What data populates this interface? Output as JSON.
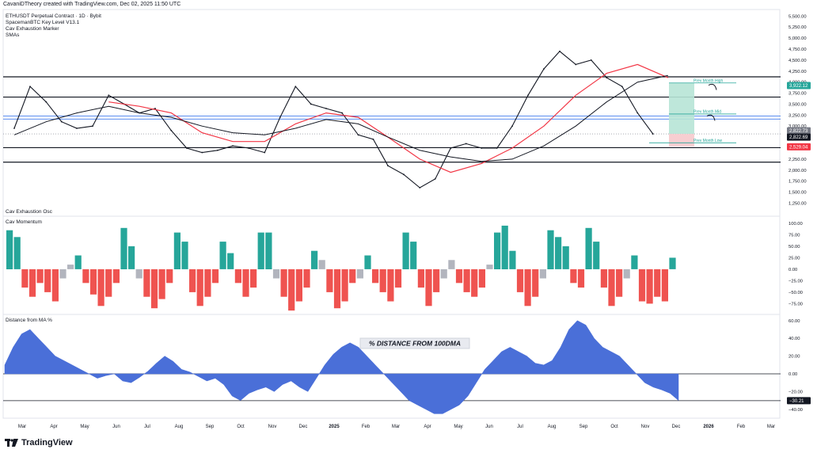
{
  "header": {
    "attribution": "CavaniDTheory created with TradingView.com, Dec 02, 2025 11:50 UTC",
    "symbol": "ETHUSDT Perpetual Contract · 1D · Bybit",
    "indicator1": "SpacemanBTC Key Level V13.1",
    "indicator2": "Cav Exhaustion Marker",
    "indicator3": "SMAs"
  },
  "panes": {
    "osc_title": "Cav Exhaustion Osc",
    "momentum_title": "Cav Momentum",
    "distance_title": "Distance from MA %",
    "distance_annotation": "% DISTANCE FROM  100DMA"
  },
  "footer": {
    "logo_text": "TradingView"
  },
  "colors": {
    "candle": "#131722",
    "sma_fast": "#f23645",
    "sma_slow": "#131722",
    "level": "#131722",
    "blue_level": "#5b8def",
    "osc_pos": "#26a69a",
    "osc_neg": "#ef5350",
    "osc_neutral": "#b2b5be",
    "distance_fill": "#4a6fd8",
    "pos_box": "#b7e4d6",
    "neg_box": "#f6c9cc"
  },
  "chart_data": [
    {
      "type": "line",
      "title": "ETHUSDT Perpetual Contract · 1D · Bybit",
      "x_ticks": [
        "Mar",
        "Apr",
        "May",
        "Jun",
        "Jul",
        "Aug",
        "Sep",
        "Oct",
        "Nov",
        "Dec",
        "2025",
        "Feb",
        "Mar",
        "Apr",
        "May",
        "Jun",
        "Jul",
        "Aug",
        "Sep",
        "Oct",
        "Nov",
        "Dec",
        "2026",
        "Feb",
        "Mar"
      ],
      "y_ticks": [
        "5,500.00",
        "5,250.00",
        "5,000.00",
        "4,750.00",
        "4,500.00",
        "4,250.00",
        "4,000.00",
        "3,750.00",
        "3,500.00",
        "3,250.00",
        "3,000.00",
        "2,750.00",
        "2,500.00",
        "2,250.00",
        "2,000.00",
        "1,750.00",
        "1,500.00",
        "1,250.00"
      ],
      "ylim": [
        1150,
        5650
      ],
      "log_scale": false,
      "price_badges": [
        "3,922.12",
        "2,822.73",
        "2,822.69",
        "2,529.04"
      ],
      "level_labels": [
        "Prev Month High",
        "Prev Month Mid",
        "Prev Month Low"
      ],
      "key_levels": [
        4120,
        3660,
        2510,
        2180
      ],
      "blue_levels": [
        3230,
        3160
      ],
      "series": [
        {
          "name": "ETHUSDT",
          "points": [
            [
              "Mar",
              2950
            ],
            [
              "Mar",
              3900
            ],
            [
              "Apr",
              3550
            ],
            [
              "Apr",
              3100
            ],
            [
              "May",
              2950
            ],
            [
              "May",
              3000
            ],
            [
              "Jun",
              3700
            ],
            [
              "Jun",
              3500
            ],
            [
              "Jul",
              3300
            ],
            [
              "Jul",
              3400
            ],
            [
              "Aug",
              2900
            ],
            [
              "Aug",
              2500
            ],
            [
              "Sep",
              2400
            ],
            [
              "Sep",
              2450
            ],
            [
              "Oct",
              2550
            ],
            [
              "Oct",
              2500
            ],
            [
              "Nov",
              2400
            ],
            [
              "Nov",
              3200
            ],
            [
              "Dec",
              3900
            ],
            [
              "Dec",
              3500
            ],
            [
              "2025",
              3400
            ],
            [
              "2025",
              3300
            ],
            [
              "Feb",
              2800
            ],
            [
              "Feb",
              2700
            ],
            [
              "Mar",
              2100
            ],
            [
              "Mar",
              1900
            ],
            [
              "Apr",
              1600
            ],
            [
              "Apr",
              1800
            ],
            [
              "May",
              2500
            ],
            [
              "May",
              2600
            ],
            [
              "Jun",
              2500
            ],
            [
              "Jun",
              2500
            ],
            [
              "Jul",
              3000
            ],
            [
              "Jul",
              3700
            ],
            [
              "Aug",
              4300
            ],
            [
              "Aug",
              4700
            ],
            [
              "Sep",
              4400
            ],
            [
              "Sep",
              4500
            ],
            [
              "Oct",
              4100
            ],
            [
              "Oct",
              3900
            ],
            [
              "Nov",
              3300
            ],
            [
              "Nov",
              2822.69
            ]
          ]
        },
        {
          "name": "SMA fast",
          "points": [
            [
              "Jun",
              3550
            ],
            [
              "Jul",
              3450
            ],
            [
              "Aug",
              3300
            ],
            [
              "Sep",
              2850
            ],
            [
              "Oct",
              2650
            ],
            [
              "Nov",
              2650
            ],
            [
              "Dec",
              3050
            ],
            [
              "2025",
              3300
            ],
            [
              "Feb",
              3200
            ],
            [
              "Mar",
              2750
            ],
            [
              "Apr",
              2250
            ],
            [
              "May",
              1950
            ],
            [
              "Jun",
              2150
            ],
            [
              "Jul",
              2500
            ],
            [
              "Aug",
              3000
            ],
            [
              "Sep",
              3700
            ],
            [
              "Oct",
              4200
            ],
            [
              "Nov",
              4400
            ],
            [
              "Dec",
              4100
            ]
          ]
        },
        {
          "name": "SMA slow",
          "points": [
            [
              "Mar",
              2800
            ],
            [
              "Apr",
              3100
            ],
            [
              "May",
              3300
            ],
            [
              "Jun",
              3450
            ],
            [
              "Jul",
              3300
            ],
            [
              "Aug",
              3200
            ],
            [
              "Sep",
              3000
            ],
            [
              "Oct",
              2850
            ],
            [
              "Nov",
              2800
            ],
            [
              "Dec",
              2950
            ],
            [
              "2025",
              3150
            ],
            [
              "Feb",
              3050
            ],
            [
              "Mar",
              2750
            ],
            [
              "Apr",
              2450
            ],
            [
              "May",
              2300
            ],
            [
              "Jun",
              2200
            ],
            [
              "Jul",
              2250
            ],
            [
              "Aug",
              2550
            ],
            [
              "Sep",
              3000
            ],
            [
              "Oct",
              3550
            ],
            [
              "Nov",
              4000
            ],
            [
              "Dec",
              4150
            ]
          ]
        }
      ]
    },
    {
      "type": "bar",
      "title": "Cav Momentum",
      "y_ticks": [
        "100.00",
        "75.00",
        "50.00",
        "25.00",
        "0.00",
        "−25.00",
        "−50.00",
        "−75.00"
      ],
      "ylim": [
        -95,
        112
      ],
      "values": [
        85,
        70,
        -40,
        -60,
        -30,
        -50,
        -70,
        -20,
        10,
        30,
        -30,
        -55,
        -80,
        -60,
        -30,
        90,
        50,
        -20,
        -60,
        -85,
        -65,
        -30,
        80,
        60,
        -50,
        -80,
        -60,
        -30,
        60,
        35,
        -30,
        -60,
        -40,
        80,
        80,
        -20,
        -60,
        -90,
        -70,
        -40,
        40,
        20,
        -50,
        -85,
        -70,
        -30,
        -20,
        30,
        -30,
        -50,
        -70,
        -40,
        80,
        60,
        -40,
        -80,
        -50,
        -20,
        20,
        -30,
        -50,
        -60,
        -40,
        10,
        80,
        95,
        40,
        -50,
        -80,
        -60,
        -20,
        85,
        70,
        50,
        -30,
        -40,
        90,
        60,
        -40,
        -80,
        -60,
        -20,
        30,
        -70,
        -75,
        -60,
        -70,
        25
      ]
    },
    {
      "type": "area",
      "title": "Distance from MA %",
      "y_ticks": [
        "60.00",
        "40.00",
        "20.00",
        "0.00",
        "−20.00",
        "−40.00"
      ],
      "ylim": [
        -50,
        67
      ],
      "price_badges": [
        "−30.21"
      ],
      "values": [
        10,
        30,
        45,
        50,
        40,
        30,
        20,
        15,
        10,
        5,
        0,
        -5,
        -2,
        0,
        -8,
        -10,
        -4,
        3,
        12,
        20,
        14,
        5,
        2,
        -3,
        -8,
        -5,
        -12,
        -25,
        -30,
        -22,
        -18,
        -15,
        -20,
        -12,
        -8,
        -15,
        -20,
        -5,
        10,
        22,
        30,
        35,
        30,
        20,
        10,
        0,
        -10,
        -20,
        -30,
        -35,
        -40,
        -45,
        -45,
        -40,
        -35,
        -25,
        -10,
        5,
        15,
        25,
        30,
        25,
        20,
        12,
        10,
        15,
        30,
        50,
        60,
        55,
        40,
        30,
        25,
        20,
        10,
        0,
        -10,
        -15,
        -18,
        -22,
        -30
      ]
    }
  ]
}
